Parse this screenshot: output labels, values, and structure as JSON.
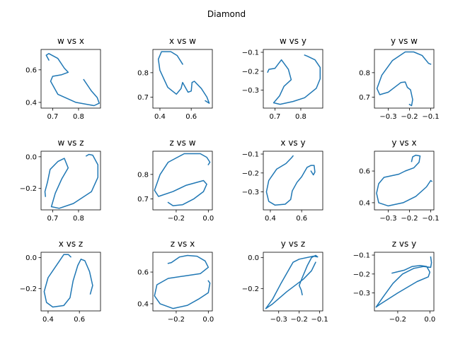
{
  "figure": {
    "suptitle": "Diamond",
    "line_color": "#1f77b4"
  },
  "chart_data": [
    {
      "type": "line",
      "title": "w vs x",
      "xlim": [
        0.655,
        0.885
      ],
      "ylim": [
        0.365,
        0.725
      ],
      "xticks": [
        0.7,
        0.8
      ],
      "yticks": [
        0.4,
        0.6
      ],
      "xtick_labels": [
        "0.7",
        "0.8"
      ],
      "ytick_labels": [
        "0.4",
        "0.6"
      ],
      "points": [
        [
          0.685,
          0.66
        ],
        [
          0.675,
          0.69
        ],
        [
          0.685,
          0.7
        ],
        [
          0.72,
          0.67
        ],
        [
          0.745,
          0.61
        ],
        [
          0.76,
          0.585
        ],
        [
          0.735,
          0.57
        ],
        [
          0.7,
          0.56
        ],
        [
          0.692,
          0.53
        ],
        [
          0.72,
          0.45
        ],
        [
          0.79,
          0.4
        ],
        [
          0.86,
          0.38
        ],
        [
          0.88,
          0.395
        ],
        [
          0.872,
          0.43
        ],
        [
          0.85,
          0.47
        ],
        [
          0.82,
          0.54
        ]
      ]
    },
    {
      "type": "line",
      "title": "x vs w",
      "xlim": [
        0.355,
        0.735
      ],
      "ylim": [
        0.655,
        0.895
      ],
      "xticks": [
        0.4,
        0.6
      ],
      "yticks": [
        0.7,
        0.8
      ],
      "xtick_labels": [
        "0.4",
        "0.6"
      ],
      "ytick_labels": [
        "0.7",
        "0.8"
      ],
      "points": [
        [
          0.545,
          0.835
        ],
        [
          0.51,
          0.87
        ],
        [
          0.47,
          0.886
        ],
        [
          0.41,
          0.886
        ],
        [
          0.39,
          0.855
        ],
        [
          0.4,
          0.81
        ],
        [
          0.45,
          0.74
        ],
        [
          0.505,
          0.712
        ],
        [
          0.535,
          0.735
        ],
        [
          0.545,
          0.76
        ],
        [
          0.58,
          0.72
        ],
        [
          0.6,
          0.725
        ],
        [
          0.605,
          0.76
        ],
        [
          0.62,
          0.765
        ],
        [
          0.665,
          0.735
        ],
        [
          0.7,
          0.7
        ],
        [
          0.715,
          0.675
        ],
        [
          0.69,
          0.685
        ]
      ]
    },
    {
      "type": "line",
      "title": "w vs y",
      "xlim": [
        0.655,
        0.885
      ],
      "ylim": [
        -0.395,
        -0.085
      ],
      "xticks": [
        0.7,
        0.8
      ],
      "yticks": [
        -0.1,
        -0.2,
        -0.3
      ],
      "xtick_labels": [
        "0.7",
        "0.8"
      ],
      "ytick_labels": [
        "−0.1",
        "−0.2",
        "−0.3"
      ],
      "points": [
        [
          0.672,
          -0.205
        ],
        [
          0.677,
          -0.19
        ],
        [
          0.7,
          -0.185
        ],
        [
          0.725,
          -0.14
        ],
        [
          0.752,
          -0.19
        ],
        [
          0.763,
          -0.245
        ],
        [
          0.735,
          -0.28
        ],
        [
          0.718,
          -0.33
        ],
        [
          0.695,
          -0.367
        ],
        [
          0.72,
          -0.375
        ],
        [
          0.77,
          -0.36
        ],
        [
          0.815,
          -0.34
        ],
        [
          0.86,
          -0.29
        ],
        [
          0.875,
          -0.24
        ],
        [
          0.875,
          -0.18
        ],
        [
          0.855,
          -0.14
        ],
        [
          0.825,
          -0.12
        ],
        [
          0.815,
          -0.115
        ]
      ]
    },
    {
      "type": "line",
      "title": "y vs w",
      "xlim": [
        -0.365,
        -0.085
      ],
      "ylim": [
        0.655,
        0.895
      ],
      "xticks": [
        -0.3,
        -0.2,
        -0.1
      ],
      "yticks": [
        0.7,
        0.8
      ],
      "xtick_labels": [
        "−0.3",
        "−0.2",
        "−0.1"
      ],
      "ytick_labels": [
        "0.7",
        "0.8"
      ],
      "points": [
        [
          -0.1,
          0.835
        ],
        [
          -0.11,
          0.838
        ],
        [
          -0.14,
          0.87
        ],
        [
          -0.18,
          0.885
        ],
        [
          -0.22,
          0.885
        ],
        [
          -0.28,
          0.85
        ],
        [
          -0.33,
          0.79
        ],
        [
          -0.353,
          0.735
        ],
        [
          -0.34,
          0.71
        ],
        [
          -0.3,
          0.72
        ],
        [
          -0.24,
          0.76
        ],
        [
          -0.22,
          0.762
        ],
        [
          -0.21,
          0.74
        ],
        [
          -0.195,
          0.73
        ],
        [
          -0.185,
          0.69
        ],
        [
          -0.19,
          0.665
        ],
        [
          -0.2,
          0.67
        ]
      ]
    },
    {
      "type": "line",
      "title": "w vs z",
      "xlim": [
        0.655,
        0.885
      ],
      "ylim": [
        -0.335,
        0.035
      ],
      "xticks": [
        0.7,
        0.8
      ],
      "yticks": [
        0.0,
        -0.2
      ],
      "xtick_labels": [
        "0.7",
        "0.8"
      ],
      "ytick_labels": [
        "0.0",
        "−0.2"
      ],
      "points": [
        [
          0.672,
          -0.25
        ],
        [
          0.67,
          -0.22
        ],
        [
          0.68,
          -0.16
        ],
        [
          0.69,
          -0.08
        ],
        [
          0.72,
          -0.03
        ],
        [
          0.745,
          -0.01
        ],
        [
          0.76,
          -0.07
        ],
        [
          0.735,
          -0.14
        ],
        [
          0.71,
          -0.23
        ],
        [
          0.695,
          -0.315
        ],
        [
          0.725,
          -0.325
        ],
        [
          0.78,
          -0.295
        ],
        [
          0.85,
          -0.22
        ],
        [
          0.875,
          -0.13
        ],
        [
          0.875,
          -0.05
        ],
        [
          0.855,
          0.01
        ],
        [
          0.84,
          0.015
        ],
        [
          0.83,
          0.005
        ]
      ]
    },
    {
      "type": "line",
      "title": "z vs w",
      "xlim": [
        -0.345,
        0.025
      ],
      "ylim": [
        0.655,
        0.895
      ],
      "xticks": [
        -0.2,
        0.0
      ],
      "yticks": [
        0.7,
        0.8
      ],
      "xtick_labels": [
        "−0.2",
        "0.0"
      ],
      "ytick_labels": [
        "0.7",
        "0.8"
      ],
      "points": [
        [
          0.0,
          0.84
        ],
        [
          0.01,
          0.85
        ],
        [
          -0.01,
          0.87
        ],
        [
          -0.05,
          0.885
        ],
        [
          -0.15,
          0.885
        ],
        [
          -0.25,
          0.85
        ],
        [
          -0.3,
          0.8
        ],
        [
          -0.335,
          0.735
        ],
        [
          -0.31,
          0.71
        ],
        [
          -0.22,
          0.73
        ],
        [
          -0.14,
          0.755
        ],
        [
          -0.03,
          0.775
        ],
        [
          -0.01,
          0.76
        ],
        [
          -0.03,
          0.73
        ],
        [
          -0.09,
          0.7
        ],
        [
          -0.16,
          0.676
        ],
        [
          -0.22,
          0.672
        ],
        [
          -0.25,
          0.685
        ]
      ]
    },
    {
      "type": "line",
      "title": "x vs y",
      "xlim": [
        0.355,
        0.735
      ],
      "ylim": [
        -0.395,
        -0.085
      ],
      "xticks": [
        0.4,
        0.6
      ],
      "yticks": [
        -0.1,
        -0.2,
        -0.3
      ],
      "xtick_labels": [
        "0.4",
        "0.6"
      ],
      "ytick_labels": [
        "−0.1",
        "−0.2",
        "−0.3"
      ],
      "points": [
        [
          0.545,
          -0.11
        ],
        [
          0.535,
          -0.12
        ],
        [
          0.5,
          -0.15
        ],
        [
          0.44,
          -0.18
        ],
        [
          0.39,
          -0.24
        ],
        [
          0.375,
          -0.3
        ],
        [
          0.39,
          -0.35
        ],
        [
          0.43,
          -0.37
        ],
        [
          0.495,
          -0.365
        ],
        [
          0.53,
          -0.34
        ],
        [
          0.54,
          -0.295
        ],
        [
          0.57,
          -0.25
        ],
        [
          0.6,
          -0.22
        ],
        [
          0.635,
          -0.17
        ],
        [
          0.66,
          -0.16
        ],
        [
          0.68,
          -0.16
        ],
        [
          0.685,
          -0.195
        ],
        [
          0.675,
          -0.21
        ],
        [
          0.66,
          -0.19
        ]
      ]
    },
    {
      "type": "line",
      "title": "y vs x",
      "xlim": [
        -0.365,
        -0.085
      ],
      "ylim": [
        0.355,
        0.725
      ],
      "xticks": [
        -0.3,
        -0.2,
        -0.1
      ],
      "yticks": [
        0.4,
        0.6
      ],
      "xtick_labels": [
        "−0.3",
        "−0.2",
        "−0.1"
      ],
      "ytick_labels": [
        "0.4",
        "0.6"
      ],
      "points": [
        [
          -0.19,
          0.66
        ],
        [
          -0.185,
          0.69
        ],
        [
          -0.17,
          0.7
        ],
        [
          -0.15,
          0.695
        ],
        [
          -0.155,
          0.655
        ],
        [
          -0.18,
          0.62
        ],
        [
          -0.22,
          0.6
        ],
        [
          -0.25,
          0.58
        ],
        [
          -0.32,
          0.56
        ],
        [
          -0.345,
          0.52
        ],
        [
          -0.355,
          0.46
        ],
        [
          -0.345,
          0.4
        ],
        [
          -0.3,
          0.38
        ],
        [
          -0.23,
          0.4
        ],
        [
          -0.17,
          0.44
        ],
        [
          -0.12,
          0.5
        ],
        [
          -0.1,
          0.54
        ],
        [
          -0.095,
          0.535
        ]
      ]
    },
    {
      "type": "line",
      "title": "x vs z",
      "xlim": [
        0.355,
        0.735
      ],
      "ylim": [
        -0.345,
        0.035
      ],
      "xticks": [
        0.4,
        0.6
      ],
      "yticks": [
        0.0,
        -0.2
      ],
      "xtick_labels": [
        "0.4",
        "0.6"
      ],
      "ytick_labels": [
        "0.0",
        "−0.2"
      ],
      "points": [
        [
          0.545,
          0.005
        ],
        [
          0.53,
          0.02
        ],
        [
          0.5,
          0.02
        ],
        [
          0.46,
          -0.04
        ],
        [
          0.4,
          -0.13
        ],
        [
          0.375,
          -0.22
        ],
        [
          0.39,
          -0.29
        ],
        [
          0.43,
          -0.32
        ],
        [
          0.5,
          -0.31
        ],
        [
          0.54,
          -0.26
        ],
        [
          0.56,
          -0.15
        ],
        [
          0.59,
          -0.05
        ],
        [
          0.61,
          -0.01
        ],
        [
          0.635,
          -0.02
        ],
        [
          0.665,
          -0.09
        ],
        [
          0.685,
          -0.18
        ],
        [
          0.67,
          -0.235
        ]
      ]
    },
    {
      "type": "line",
      "title": "z vs x",
      "xlim": [
        -0.345,
        0.025
      ],
      "ylim": [
        0.355,
        0.725
      ],
      "xticks": [
        -0.2,
        0.0
      ],
      "yticks": [
        0.4,
        0.6
      ],
      "xtick_labels": [
        "−0.2",
        "0.0"
      ],
      "ytick_labels": [
        "0.4",
        "0.6"
      ],
      "points": [
        [
          -0.25,
          0.655
        ],
        [
          -0.23,
          0.66
        ],
        [
          -0.18,
          0.695
        ],
        [
          -0.13,
          0.705
        ],
        [
          -0.07,
          0.7
        ],
        [
          -0.02,
          0.67
        ],
        [
          0.0,
          0.63
        ],
        [
          -0.05,
          0.59
        ],
        [
          -0.15,
          0.575
        ],
        [
          -0.25,
          0.56
        ],
        [
          -0.32,
          0.52
        ],
        [
          -0.335,
          0.45
        ],
        [
          -0.3,
          0.4
        ],
        [
          -0.22,
          0.37
        ],
        [
          -0.13,
          0.39
        ],
        [
          -0.06,
          0.43
        ],
        [
          0.0,
          0.47
        ],
        [
          0.01,
          0.53
        ],
        [
          0.0,
          0.545
        ]
      ]
    },
    {
      "type": "line",
      "title": "y vs z",
      "xlim": [
        -0.375,
        -0.085
      ],
      "ylim": [
        -0.345,
        0.035
      ],
      "xticks": [
        -0.3,
        -0.2,
        -0.1
      ],
      "yticks": [
        0.0,
        -0.2
      ],
      "xtick_labels": [
        "−0.3",
        "−0.2",
        "−0.1"
      ],
      "ytick_labels": [
        "0.0",
        "−0.2"
      ],
      "points": [
        [
          -0.185,
          -0.24
        ],
        [
          -0.19,
          -0.21
        ],
        [
          -0.2,
          -0.18
        ],
        [
          -0.185,
          -0.13
        ],
        [
          -0.16,
          -0.05
        ],
        [
          -0.14,
          0.0
        ],
        [
          -0.12,
          0.015
        ],
        [
          -0.11,
          0.005
        ],
        [
          -0.13,
          0.01
        ],
        [
          -0.2,
          -0.01
        ],
        [
          -0.23,
          -0.03
        ],
        [
          -0.29,
          -0.17
        ],
        [
          -0.33,
          -0.27
        ],
        [
          -0.363,
          -0.33
        ],
        [
          -0.33,
          -0.3
        ],
        [
          -0.26,
          -0.22
        ],
        [
          -0.18,
          -0.14
        ],
        [
          -0.14,
          -0.085
        ],
        [
          -0.12,
          -0.03
        ]
      ]
    },
    {
      "type": "line",
      "title": "z vs y",
      "xlim": [
        -0.345,
        0.025
      ],
      "ylim": [
        -0.395,
        -0.085
      ],
      "xticks": [
        -0.2,
        0.0
      ],
      "yticks": [
        -0.1,
        -0.2,
        -0.3
      ],
      "xtick_labels": [
        "−0.2",
        "0.0"
      ],
      "ytick_labels": [
        "−0.1",
        "−0.2",
        "−0.3"
      ],
      "points": [
        [
          0.005,
          -0.11
        ],
        [
          0.01,
          -0.14
        ],
        [
          0.005,
          -0.165
        ],
        [
          -0.04,
          -0.16
        ],
        [
          -0.1,
          -0.17
        ],
        [
          -0.17,
          -0.2
        ],
        [
          -0.23,
          -0.25
        ],
        [
          -0.29,
          -0.32
        ],
        [
          -0.335,
          -0.375
        ],
        [
          -0.31,
          -0.36
        ],
        [
          -0.2,
          -0.3
        ],
        [
          -0.08,
          -0.24
        ],
        [
          -0.01,
          -0.215
        ],
        [
          0.0,
          -0.19
        ],
        [
          -0.02,
          -0.16
        ],
        [
          -0.06,
          -0.155
        ],
        [
          -0.11,
          -0.16
        ],
        [
          -0.16,
          -0.18
        ],
        [
          -0.21,
          -0.19
        ],
        [
          -0.235,
          -0.195
        ]
      ]
    }
  ]
}
